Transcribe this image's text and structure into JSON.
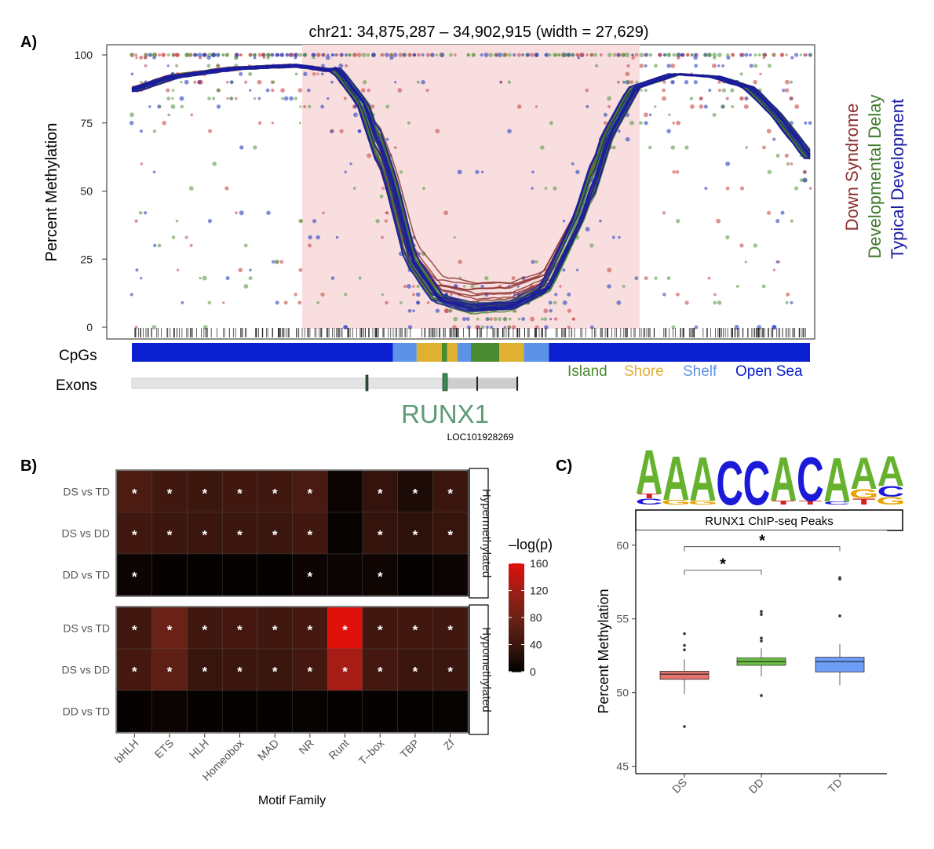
{
  "panel_labels": {
    "a": "A)",
    "b": "B)",
    "c": "C)"
  },
  "colors": {
    "ds": "#8b2f2f",
    "dd": "#3f7a2c",
    "td": "#1a1aa0",
    "ds_point": "#c94a4a",
    "dd_point": "#5d9a4a",
    "td_point": "#2a3fc0",
    "island": "#4a8a30",
    "shore": "#e0b030",
    "shelf": "#5c93e6",
    "opensea": "#0a1fd0",
    "dmr_highlight": "#f8dede",
    "gene": "#5f9a76",
    "box_ds": "#e5736e",
    "box_dd": "#6cbf45",
    "box_td": "#6c9ef8",
    "logo_a": "#66b22e",
    "logo_c": "#1a1ad8",
    "logo_g": "#e8a300",
    "logo_t": "#d81f1f"
  },
  "chart_data": [
    {
      "id": "A",
      "type": "scatter",
      "title": "chr21: 34,875,287 – 34,902,915 (width = 27,629)",
      "ylabel": "Percent Methylation",
      "ylim": [
        0,
        100
      ],
      "yticks": [
        "0",
        "25",
        "50",
        "75",
        "100"
      ],
      "legend": [
        "Down Syndrome",
        "Developmental Delay",
        "Typical Development"
      ],
      "tracks": {
        "cpg_label": "CpGs",
        "exon_label": "Exons",
        "cpg_legend": [
          "Island",
          "Shore",
          "Shelf",
          "Open Sea"
        ],
        "cpg_segments": [
          {
            "from": 0.0,
            "to": 0.385,
            "type": "opensea"
          },
          {
            "from": 0.385,
            "to": 0.42,
            "type": "shelf"
          },
          {
            "from": 0.42,
            "to": 0.457,
            "type": "shore"
          },
          {
            "from": 0.457,
            "to": 0.465,
            "type": "island"
          },
          {
            "from": 0.465,
            "to": 0.48,
            "type": "shore"
          },
          {
            "from": 0.48,
            "to": 0.5,
            "type": "shelf"
          },
          {
            "from": 0.5,
            "to": 0.542,
            "type": "island"
          },
          {
            "from": 0.542,
            "to": 0.578,
            "type": "shore"
          },
          {
            "from": 0.578,
            "to": 0.615,
            "type": "shelf"
          },
          {
            "from": 0.615,
            "to": 1.0,
            "type": "opensea"
          }
        ],
        "gene": "RUNX1",
        "gene2": "LOC101928269"
      },
      "smooth_profile": [
        [
          0,
          0.88
        ],
        [
          0.06,
          0.93
        ],
        [
          0.15,
          0.96
        ],
        [
          0.24,
          0.97
        ],
        [
          0.3,
          0.95
        ],
        [
          0.34,
          0.82
        ],
        [
          0.38,
          0.52
        ],
        [
          0.41,
          0.22
        ],
        [
          0.45,
          0.07
        ],
        [
          0.5,
          0.03
        ],
        [
          0.56,
          0.04
        ],
        [
          0.61,
          0.11
        ],
        [
          0.66,
          0.38
        ],
        [
          0.7,
          0.7
        ],
        [
          0.74,
          0.88
        ],
        [
          0.8,
          0.93
        ],
        [
          0.86,
          0.92
        ],
        [
          0.91,
          0.88
        ],
        [
          0.95,
          0.78
        ],
        [
          1.0,
          0.62
        ]
      ]
    },
    {
      "id": "B",
      "type": "heatmap",
      "xlabel": "Motif Family",
      "categories": [
        "bHLH",
        "ETS",
        "HLH",
        "Homeobox",
        "MAD",
        "NR",
        "Runt",
        "T–box",
        "TBP",
        "Zf"
      ],
      "rows": [
        "DS vs TD",
        "DS vs DD",
        "DD vs TD"
      ],
      "facets": [
        {
          "name": "Hypermethylated",
          "values": [
            [
              55,
              45,
              42,
              45,
              45,
              52,
              8,
              35,
              20,
              40
            ],
            [
              45,
              40,
              40,
              40,
              40,
              45,
              5,
              35,
              30,
              38
            ],
            [
              8,
              4,
              3,
              4,
              3,
              8,
              8,
              10,
              4,
              8
            ]
          ],
          "significant": [
            [
              true,
              true,
              true,
              true,
              true,
              true,
              false,
              true,
              true,
              true
            ],
            [
              true,
              true,
              true,
              true,
              true,
              true,
              false,
              true,
              true,
              true
            ],
            [
              true,
              false,
              false,
              false,
              false,
              true,
              false,
              true,
              false,
              false
            ]
          ]
        },
        {
          "name": "Hypomethylated",
          "values": [
            [
              45,
              80,
              45,
              48,
              45,
              50,
              160,
              45,
              45,
              45
            ],
            [
              50,
              70,
              38,
              40,
              40,
              48,
              125,
              48,
              40,
              40
            ],
            [
              4,
              8,
              4,
              4,
              4,
              5,
              4,
              4,
              4,
              5
            ]
          ],
          "significant": [
            [
              true,
              true,
              true,
              true,
              true,
              true,
              true,
              true,
              true,
              true
            ],
            [
              true,
              true,
              true,
              true,
              true,
              true,
              true,
              true,
              true,
              true
            ],
            [
              false,
              false,
              false,
              false,
              false,
              false,
              false,
              false,
              false,
              false
            ]
          ]
        }
      ],
      "legend_title": "–log(p)",
      "legend_ticks": [
        0,
        40,
        80,
        120,
        160
      ],
      "sig_marker": "*"
    },
    {
      "id": "C",
      "type": "box",
      "strip_label": "RUNX1 ChIP-seq Peaks",
      "motif": [
        "A",
        "A",
        "A",
        "C",
        "C",
        "A",
        "C",
        "A",
        "A",
        "A"
      ],
      "ylabel": "Percent Methylation",
      "ylim": [
        44.5,
        61
      ],
      "yticks": [
        45,
        50,
        55,
        60
      ],
      "categories": [
        "DS",
        "DD",
        "TD"
      ],
      "boxes": [
        {
          "name": "DS",
          "q1": 50.9,
          "median": 51.25,
          "q3": 51.45,
          "whisker_low": 49.9,
          "whisker_high": 52.25,
          "outliers": [
            53.2,
            52.9,
            54.0,
            47.7
          ]
        },
        {
          "name": "DD",
          "q1": 51.85,
          "median": 52.1,
          "q3": 52.35,
          "whisker_low": 51.1,
          "whisker_high": 53.0,
          "outliers": [
            55.3,
            55.5,
            53.7,
            53.5,
            49.8
          ]
        },
        {
          "name": "TD",
          "q1": 51.4,
          "median": 52.1,
          "q3": 52.4,
          "whisker_low": 50.5,
          "whisker_high": 53.3,
          "outliers": [
            57.7,
            57.8,
            55.2
          ]
        }
      ],
      "brackets": [
        {
          "from": "DS",
          "to": "DD",
          "label": "*",
          "y": 58.3
        },
        {
          "from": "DS",
          "to": "TD",
          "label": "*",
          "y": 59.9
        }
      ]
    }
  ]
}
